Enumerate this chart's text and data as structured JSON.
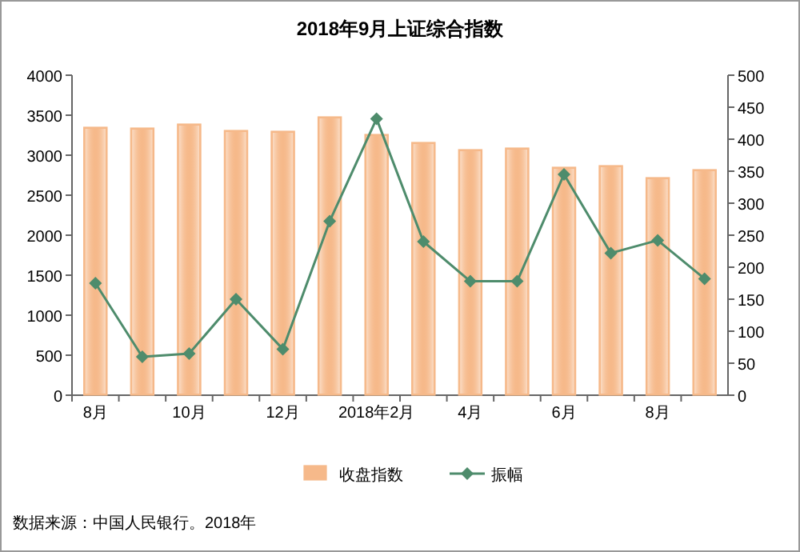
{
  "chart_data": {
    "type": "bar",
    "title": "2018年9月上证综合指数",
    "categories": [
      "8月",
      null,
      "10月",
      null,
      "12月",
      null,
      "2018年2月",
      null,
      "4月",
      null,
      "6月",
      null,
      "8月",
      null
    ],
    "series": [
      {
        "name": "收盘指数",
        "color": "#f6b98a",
        "values": [
          3350,
          3340,
          3390,
          3310,
          3300,
          3480,
          3260,
          3160,
          3070,
          3090,
          2850,
          2870,
          2720,
          2820
        ]
      },
      {
        "name": "振幅",
        "type": "line",
        "axis": "y2",
        "color": "#4e8c6c",
        "marker": "diamond",
        "values": [
          175,
          60,
          65,
          150,
          72,
          272,
          432,
          240,
          178,
          178,
          345,
          222,
          242,
          182
        ]
      }
    ],
    "ylim": [
      0,
      4000
    ],
    "yticks": [
      0,
      500,
      1000,
      1500,
      2000,
      2500,
      3000,
      3500,
      4000
    ],
    "y2lim": [
      0,
      500
    ],
    "y2ticks": [
      0,
      50,
      100,
      150,
      200,
      250,
      300,
      350,
      400,
      450,
      500
    ],
    "legend": "bottom",
    "annotations": [
      "数据来源：中国人民银行。2018年"
    ]
  }
}
